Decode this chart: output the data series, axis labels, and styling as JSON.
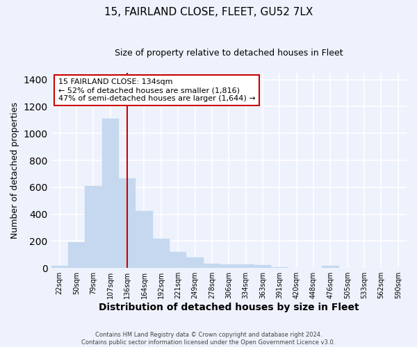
{
  "title": "15, FAIRLAND CLOSE, FLEET, GU52 7LX",
  "subtitle": "Size of property relative to detached houses in Fleet",
  "xlabel": "Distribution of detached houses by size in Fleet",
  "ylabel": "Number of detached properties",
  "bar_color": "#c5d8f0",
  "bar_edge_color": "#c5d8f0",
  "categories": [
    "22sqm",
    "50sqm",
    "79sqm",
    "107sqm",
    "136sqm",
    "164sqm",
    "192sqm",
    "221sqm",
    "249sqm",
    "278sqm",
    "306sqm",
    "334sqm",
    "363sqm",
    "391sqm",
    "420sqm",
    "448sqm",
    "476sqm",
    "505sqm",
    "533sqm",
    "562sqm",
    "590sqm"
  ],
  "values": [
    15,
    190,
    610,
    1110,
    665,
    425,
    220,
    120,
    80,
    30,
    25,
    25,
    20,
    5,
    0,
    0,
    15,
    0,
    0,
    0,
    0
  ],
  "ylim": [
    0,
    1450
  ],
  "yticks": [
    0,
    200,
    400,
    600,
    800,
    1000,
    1200,
    1400
  ],
  "property_label": "15 FAIRLAND CLOSE: 134sqm",
  "annotation_line1": "← 52% of detached houses are smaller (1,816)",
  "annotation_line2": "47% of semi-detached houses are larger (1,644) →",
  "vline_color": "#cc0000",
  "vline_index": 4,
  "annotation_box_color": "#ffffff",
  "annotation_box_edge_color": "#cc0000",
  "bg_color": "#eef2fc",
  "grid_color": "#ffffff",
  "footer_line1": "Contains HM Land Registry data © Crown copyright and database right 2024.",
  "footer_line2": "Contains public sector information licensed under the Open Government Licence v3.0.",
  "title_fontsize": 11,
  "subtitle_fontsize": 9,
  "ylabel_fontsize": 9,
  "xlabel_fontsize": 10
}
